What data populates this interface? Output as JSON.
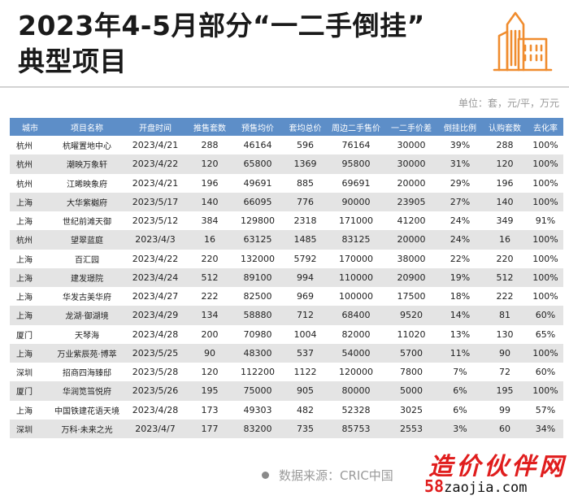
{
  "title_line1": "2023年4-5月部分“一二手倒挂”",
  "title_line2": "典型项目",
  "unit": "单位：套，元/平，万元",
  "source": "数据来源：CRIC中国",
  "watermark": {
    "site_name": "造价伙伴网",
    "url_prefix": "58",
    "url_rest": "zaojia.com"
  },
  "colors": {
    "header": "#5d8ec8",
    "stripe": "#e4e4e4",
    "logo": "#f08c2e",
    "watermark": "#e01d1d"
  },
  "table": {
    "columns": [
      "城市",
      "项目名称",
      "开盘时间",
      "推售套数",
      "预售均价",
      "套均总价",
      "周边二手售价",
      "一二手价差",
      "倒挂比例",
      "认购套数",
      "去化率"
    ],
    "rows": [
      [
        "杭州",
        "杭曜置地中心",
        "2023/4/21",
        "288",
        "46164",
        "596",
        "76164",
        "30000",
        "39%",
        "288",
        "100%"
      ],
      [
        "杭州",
        "潮映万象轩",
        "2023/4/22",
        "120",
        "65800",
        "1369",
        "95800",
        "30000",
        "31%",
        "120",
        "100%"
      ],
      [
        "杭州",
        "江晞映象府",
        "2023/4/21",
        "196",
        "49691",
        "885",
        "69691",
        "20000",
        "29%",
        "196",
        "100%"
      ],
      [
        "上海",
        "大华紫樾府",
        "2023/5/17",
        "140",
        "66095",
        "776",
        "90000",
        "23905",
        "27%",
        "140",
        "100%"
      ],
      [
        "上海",
        "世纪前滩天御",
        "2023/5/12",
        "384",
        "129800",
        "2318",
        "171000",
        "41200",
        "24%",
        "349",
        "91%"
      ],
      [
        "杭州",
        "望翠蓝庭",
        "2023/4/3",
        "16",
        "63125",
        "1485",
        "83125",
        "20000",
        "24%",
        "16",
        "100%"
      ],
      [
        "上海",
        "百汇园",
        "2023/4/22",
        "220",
        "132000",
        "5792",
        "170000",
        "38000",
        "22%",
        "220",
        "100%"
      ],
      [
        "上海",
        "建发璟院",
        "2023/4/24",
        "512",
        "89100",
        "994",
        "110000",
        "20900",
        "19%",
        "512",
        "100%"
      ],
      [
        "上海",
        "华发古美华府",
        "2023/4/27",
        "222",
        "82500",
        "969",
        "100000",
        "17500",
        "18%",
        "222",
        "100%"
      ],
      [
        "上海",
        "龙湖·御湖境",
        "2023/4/29",
        "134",
        "58880",
        "712",
        "68400",
        "9520",
        "14%",
        "81",
        "60%"
      ],
      [
        "厦门",
        "天琴海",
        "2023/4/28",
        "200",
        "70980",
        "1004",
        "82000",
        "11020",
        "13%",
        "130",
        "65%"
      ],
      [
        "上海",
        "万业紫辰苑·博萃",
        "2023/5/25",
        "90",
        "48300",
        "537",
        "54000",
        "5700",
        "11%",
        "90",
        "100%"
      ],
      [
        "深圳",
        "招商四海臻邸",
        "2023/5/28",
        "120",
        "112200",
        "1122",
        "120000",
        "7800",
        "7%",
        "72",
        "60%"
      ],
      [
        "厦门",
        "华润笕筜悦府",
        "2023/5/26",
        "195",
        "75000",
        "905",
        "80000",
        "5000",
        "6%",
        "195",
        "100%"
      ],
      [
        "上海",
        "中国铁建花语天境",
        "2023/4/28",
        "173",
        "49303",
        "482",
        "52328",
        "3025",
        "6%",
        "99",
        "57%"
      ],
      [
        "深圳",
        "万科·未来之光",
        "2023/4/7",
        "177",
        "83200",
        "735",
        "85753",
        "2553",
        "3%",
        "60",
        "34%"
      ]
    ]
  }
}
